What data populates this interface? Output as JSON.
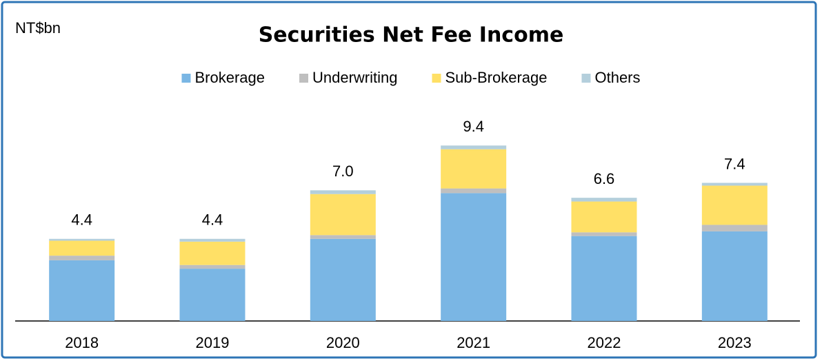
{
  "chart_data": {
    "type": "stacked_bar",
    "title": "Securities Net Fee Income",
    "unit_label": "NT$bn",
    "categories": [
      "2018",
      "2019",
      "2020",
      "2021",
      "2022",
      "2023"
    ],
    "series": [
      {
        "name": "Brokerage",
        "color": "#7ab6e4",
        "values": [
          3.25,
          2.8,
          4.4,
          6.85,
          4.55,
          4.8
        ]
      },
      {
        "name": "Underwriting",
        "color": "#bfbfbf",
        "values": [
          0.25,
          0.2,
          0.2,
          0.25,
          0.2,
          0.35
        ]
      },
      {
        "name": "Sub-Brokerage",
        "color": "#ffe066",
        "values": [
          0.8,
          1.25,
          2.2,
          2.1,
          1.65,
          2.1
        ]
      },
      {
        "name": "Others",
        "color": "#b4cfdc",
        "values": [
          0.1,
          0.15,
          0.2,
          0.2,
          0.2,
          0.15
        ]
      }
    ],
    "totals": [
      4.4,
      4.4,
      7,
      9.4,
      6.6,
      7.4
    ],
    "total_labels": [
      "4.4",
      "4.4",
      "7.0",
      "9.4",
      "6.6",
      "7.4"
    ],
    "ylim": [
      0,
      10
    ],
    "legend": "top"
  }
}
